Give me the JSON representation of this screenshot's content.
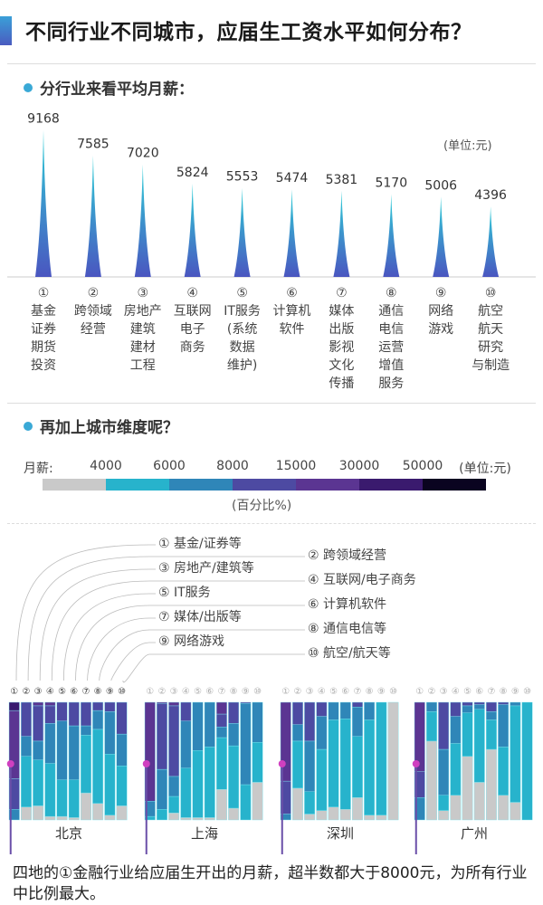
{
  "title": "不同行业不同城市，应届生工资水平如何分布？",
  "section1": {
    "heading": "分行业来看平均月薪：",
    "unit": "(单位:元)"
  },
  "section2": {
    "heading": "再加上城市维度呢？"
  },
  "colors": {
    "accent": "#3aa9d6",
    "spike_top": "#2fd0d8",
    "spike_bottom": "#4a56c0"
  },
  "chart_data": [
    {
      "type": "bar",
      "title": "分行业来看平均月薪：",
      "unit": "(单位:元)",
      "categories": [
        {
          "num": "①",
          "lines": [
            "基金",
            "证券",
            "期货",
            "投资"
          ]
        },
        {
          "num": "②",
          "lines": [
            "跨领域",
            "经营"
          ]
        },
        {
          "num": "③",
          "lines": [
            "房地产",
            "建筑",
            "建材",
            "工程"
          ]
        },
        {
          "num": "④",
          "lines": [
            "互联网",
            "电子",
            "商务"
          ]
        },
        {
          "num": "⑤",
          "lines": [
            "IT服务",
            "(系统",
            "数据",
            "维护)"
          ]
        },
        {
          "num": "⑥",
          "lines": [
            "计算机",
            "软件"
          ]
        },
        {
          "num": "⑦",
          "lines": [
            "媒体",
            "出版",
            "影视",
            "文化",
            "传播"
          ]
        },
        {
          "num": "⑧",
          "lines": [
            "通信",
            "电信",
            "运营",
            "增值",
            "服务"
          ]
        },
        {
          "num": "⑨",
          "lines": [
            "网络",
            "游戏"
          ]
        },
        {
          "num": "⑩",
          "lines": [
            "航空",
            "航天",
            "研究",
            "与制造"
          ]
        }
      ],
      "values": [
        9168,
        7585,
        7020,
        5824,
        5553,
        5474,
        5381,
        5170,
        5006,
        4396
      ]
    },
    {
      "type": "bar",
      "stacked": true,
      "legend": {
        "label": "月薪:",
        "ticks": [
          "4000",
          "6000",
          "8000",
          "15000",
          "30000",
          "50000"
        ],
        "unit": "(单位:元)",
        "note": "(百分比%)",
        "colors": [
          "#c9c9c9",
          "#27b3cc",
          "#2f86b8",
          "#4d4aa2",
          "#5b3592",
          "#3a1a6e",
          "#0a0420"
        ]
      },
      "industry_keys": [
        "① 基金/证券等",
        "② 跨领域经营",
        "③ 房地产/建筑等",
        "④ 互联网/电子商务",
        "⑤ IT服务",
        "⑥ 计算机软件",
        "⑦ 媒体/出版等",
        "⑧ 通信电信等",
        "⑨ 网络游戏",
        "⑩ 航空/航天等"
      ],
      "bar_numbers": [
        "①",
        "②",
        "③",
        "④",
        "⑤",
        "⑥",
        "⑦",
        "⑧",
        "⑨",
        "⑩"
      ],
      "cities": [
        {
          "name": "北京",
          "values": [
            [
              0,
              0,
              9,
              26,
              58,
              7
            ],
            [
              11,
              43,
              17,
              29,
              0,
              0
            ],
            [
              12,
              39,
              16,
              30,
              3,
              0
            ],
            [
              3,
              45,
              34,
              15,
              3,
              0
            ],
            [
              3,
              31,
              50,
              16,
              0,
              0
            ],
            [
              2,
              32,
              46,
              20,
              0,
              0
            ],
            [
              23,
              49,
              8,
              20,
              0,
              0
            ],
            [
              14,
              63,
              16,
              7,
              0,
              0
            ],
            [
              4,
              52,
              36,
              8,
              0,
              0
            ],
            [
              12,
              34,
              27,
              27,
              0,
              0
            ]
          ]
        },
        {
          "name": "上海",
          "values": [
            [
              0,
              3,
              13,
              0,
              84,
              0
            ],
            [
              0,
              9,
              34,
              56,
              1,
              0
            ],
            [
              6,
              14,
              17,
              60,
              3,
              0
            ],
            [
              2,
              42,
              40,
              16,
              0,
              0
            ],
            [
              2,
              57,
              41,
              0,
              0,
              0
            ],
            [
              2,
              60,
              38,
              0,
              0,
              0
            ],
            [
              26,
              44,
              9,
              11,
              10,
              0
            ],
            [
              10,
              53,
              19,
              18,
              0,
              0
            ],
            [
              0,
              30,
              69,
              1,
              0,
              0
            ],
            [
              32,
              34,
              34,
              0,
              0,
              0
            ]
          ]
        },
        {
          "name": "深圳",
          "values": [
            [
              0,
              0,
              5,
              28,
              67,
              0
            ],
            [
              27,
              40,
              14,
              19,
              0,
              0
            ],
            [
              5,
              19,
              43,
              33,
              0,
              0
            ],
            [
              8,
              52,
              28,
              12,
              0,
              0
            ],
            [
              11,
              74,
              15,
              0,
              0,
              0
            ],
            [
              9,
              77,
              14,
              0,
              0,
              0
            ],
            [
              19,
              52,
              25,
              4,
              0,
              0
            ],
            [
              4,
              81,
              15,
              0,
              0,
              0
            ],
            [
              4,
              96,
              0,
              0,
              0,
              0
            ],
            [
              100,
              0,
              0,
              0,
              0,
              0
            ]
          ]
        },
        {
          "name": "广州",
          "values": [
            [
              0,
              0,
              19,
              22,
              59,
              0
            ],
            [
              67,
              25,
              8,
              0,
              0,
              0
            ],
            [
              8,
              13,
              39,
              40,
              0,
              0
            ],
            [
              21,
              44,
              23,
              12,
              0,
              0
            ],
            [
              54,
              37,
              6,
              3,
              0,
              0
            ],
            [
              32,
              62,
              4,
              2,
              0,
              0
            ],
            [
              60,
              25,
              7,
              8,
              0,
              0
            ],
            [
              21,
              41,
              36,
              2,
              0,
              0
            ],
            [
              15,
              82,
              3,
              0,
              0,
              0
            ],
            [
              0,
              100,
              0,
              0,
              0,
              0
            ]
          ]
        }
      ]
    }
  ],
  "note": "四地的①金融行业给应届生开出的月薪，超半数都大于8000元，为所有行业中比例最大。"
}
